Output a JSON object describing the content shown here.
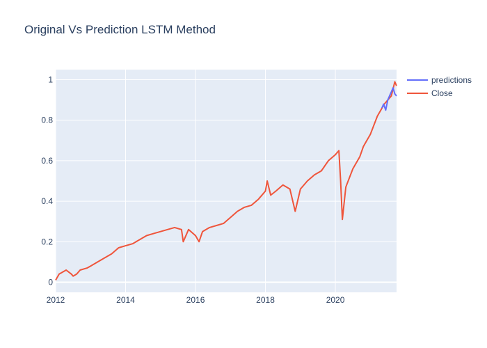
{
  "chart_data": {
    "type": "line",
    "title": "Original Vs Prediction LSTM Method",
    "xlabel": "",
    "ylabel": "",
    "xlim": [
      2012.0,
      2021.75
    ],
    "ylim": [
      -0.05,
      1.05
    ],
    "x_ticks": [
      2012,
      2014,
      2016,
      2018,
      2020
    ],
    "y_ticks": [
      0,
      0.2,
      0.4,
      0.6,
      0.8,
      1
    ],
    "grid": true,
    "legend_position": "top-right",
    "series": [
      {
        "name": "predictions",
        "color": "#636efa",
        "x": [
          2021.33,
          2021.38,
          2021.44,
          2021.5,
          2021.55,
          2021.6,
          2021.65,
          2021.7,
          2021.75
        ],
        "y": [
          0.86,
          0.88,
          0.85,
          0.9,
          0.92,
          0.94,
          0.96,
          0.93,
          0.92
        ]
      },
      {
        "name": "Close",
        "color": "#EF553B",
        "x": [
          2012.0,
          2012.1,
          2012.2,
          2012.3,
          2012.45,
          2012.5,
          2012.6,
          2012.7,
          2012.9,
          2013.0,
          2013.2,
          2013.4,
          2013.6,
          2013.8,
          2014.0,
          2014.2,
          2014.4,
          2014.6,
          2014.8,
          2015.0,
          2015.2,
          2015.4,
          2015.6,
          2015.65,
          2015.8,
          2016.0,
          2016.1,
          2016.2,
          2016.4,
          2016.6,
          2016.8,
          2017.0,
          2017.2,
          2017.4,
          2017.6,
          2017.8,
          2018.0,
          2018.05,
          2018.15,
          2018.3,
          2018.5,
          2018.7,
          2018.85,
          2019.0,
          2019.2,
          2019.4,
          2019.6,
          2019.8,
          2020.0,
          2020.1,
          2020.15,
          2020.2,
          2020.3,
          2020.5,
          2020.7,
          2020.8,
          2020.9,
          2021.0,
          2021.2,
          2021.4,
          2021.6,
          2021.7,
          2021.75
        ],
        "y": [
          0.01,
          0.04,
          0.05,
          0.06,
          0.04,
          0.03,
          0.04,
          0.06,
          0.07,
          0.08,
          0.1,
          0.12,
          0.14,
          0.17,
          0.18,
          0.19,
          0.21,
          0.23,
          0.24,
          0.25,
          0.26,
          0.27,
          0.26,
          0.2,
          0.26,
          0.23,
          0.2,
          0.25,
          0.27,
          0.28,
          0.29,
          0.32,
          0.35,
          0.37,
          0.38,
          0.41,
          0.45,
          0.5,
          0.43,
          0.45,
          0.48,
          0.46,
          0.35,
          0.46,
          0.5,
          0.53,
          0.55,
          0.6,
          0.63,
          0.65,
          0.5,
          0.31,
          0.47,
          0.56,
          0.62,
          0.67,
          0.7,
          0.73,
          0.82,
          0.88,
          0.92,
          0.99,
          0.97
        ]
      }
    ]
  }
}
